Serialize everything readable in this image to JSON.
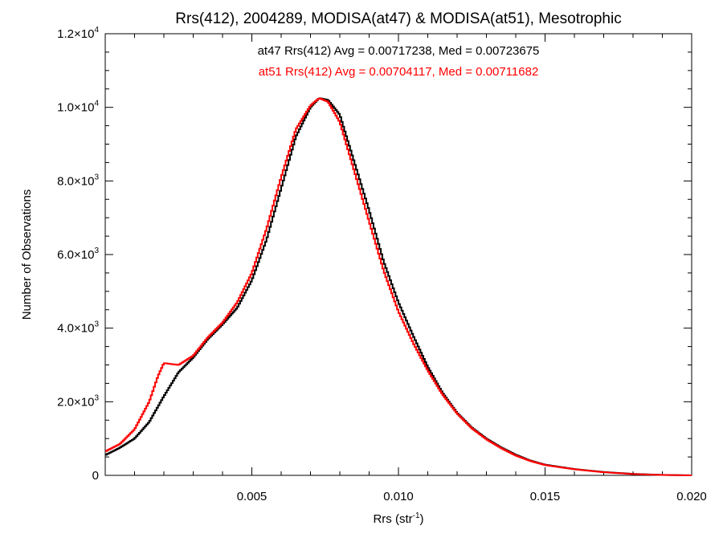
{
  "chart_data": {
    "type": "line",
    "title": "Rrs(412), 2004289, MODISA(at47) & MODISA(at51), Mesotrophic",
    "xlabel": "Rrs (str",
    "xlabel_sup": "-1",
    "xlabel_end": ")",
    "ylabel": "Number of Observations",
    "xlim": [
      0.0,
      0.02
    ],
    "ylim": [
      0,
      12000
    ],
    "x_ticks": [
      {
        "value": 0.005,
        "label": "0.005"
      },
      {
        "value": 0.01,
        "label": "0.010"
      },
      {
        "value": 0.015,
        "label": "0.015"
      },
      {
        "value": 0.02,
        "label": "0.020"
      }
    ],
    "y_ticks": [
      {
        "value": 0,
        "label": "0",
        "exp": ""
      },
      {
        "value": 2000,
        "label": "2.0×10",
        "exp": "3"
      },
      {
        "value": 4000,
        "label": "4.0×10",
        "exp": "3"
      },
      {
        "value": 6000,
        "label": "6.0×10",
        "exp": "3"
      },
      {
        "value": 8000,
        "label": "8.0×10",
        "exp": "3"
      },
      {
        "value": 10000,
        "label": "1.0×10",
        "exp": "4"
      },
      {
        "value": 12000,
        "label": "1.2×10",
        "exp": "4"
      }
    ],
    "annotations": [
      {
        "text": "at47 Rrs(412) Avg = 0.00717238, Med = 0.00723675",
        "color": "#000000"
      },
      {
        "text": "at51 Rrs(412) Avg = 0.00704117, Med = 0.00711682",
        "color": "#ff0000"
      }
    ],
    "grid": false,
    "series": [
      {
        "color": "#000000",
        "x": [
          0.0,
          0.0005,
          0.001,
          0.0015,
          0.002,
          0.0025,
          0.003,
          0.0035,
          0.004,
          0.0045,
          0.005,
          0.0055,
          0.006,
          0.0065,
          0.007,
          0.0073,
          0.0076,
          0.008,
          0.0085,
          0.009,
          0.0095,
          0.01,
          0.0105,
          0.011,
          0.0115,
          0.012,
          0.0125,
          0.013,
          0.0135,
          0.014,
          0.0145,
          0.015,
          0.016,
          0.017,
          0.018,
          0.019,
          0.02
        ],
        "y": [
          550,
          750,
          1000,
          1450,
          2150,
          2800,
          3200,
          3700,
          4100,
          4550,
          5300,
          6400,
          7800,
          9200,
          10000,
          10250,
          10200,
          9800,
          8500,
          7200,
          5800,
          4700,
          3800,
          2950,
          2250,
          1700,
          1300,
          1000,
          760,
          560,
          400,
          290,
          170,
          90,
          40,
          12,
          0
        ]
      },
      {
        "color": "#ff0000",
        "x": [
          0.0,
          0.0005,
          0.001,
          0.0015,
          0.0018,
          0.002,
          0.0025,
          0.003,
          0.0035,
          0.004,
          0.0045,
          0.005,
          0.0055,
          0.006,
          0.0065,
          0.007,
          0.0073,
          0.0076,
          0.008,
          0.0085,
          0.009,
          0.0095,
          0.01,
          0.0105,
          0.011,
          0.0115,
          0.012,
          0.0125,
          0.013,
          0.0135,
          0.014,
          0.0145,
          0.015,
          0.016,
          0.017,
          0.018,
          0.019,
          0.02
        ],
        "y": [
          650,
          850,
          1250,
          2000,
          2700,
          3050,
          3000,
          3250,
          3750,
          4150,
          4700,
          5500,
          6700,
          8100,
          9400,
          10050,
          10250,
          10150,
          9600,
          8250,
          6900,
          5550,
          4450,
          3600,
          2850,
          2200,
          1680,
          1280,
          980,
          740,
          540,
          390,
          280,
          165,
          85,
          35,
          10,
          0
        ]
      }
    ]
  }
}
